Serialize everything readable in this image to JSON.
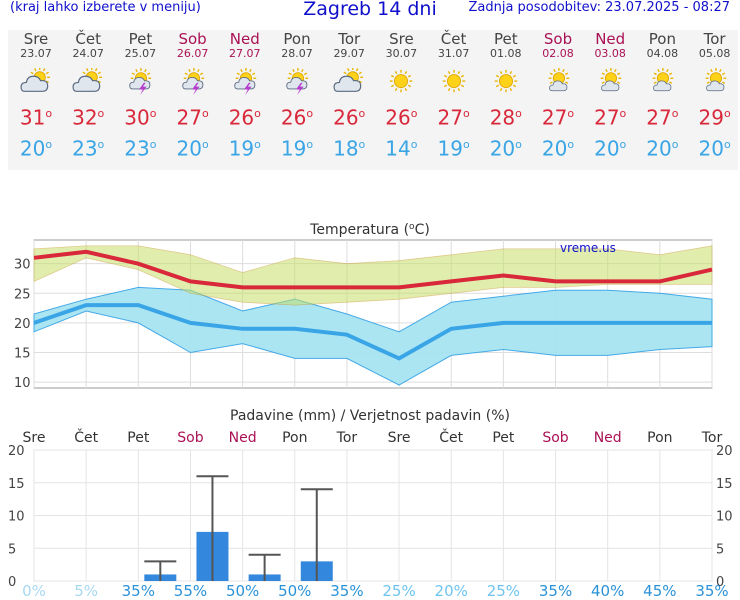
{
  "header": {
    "menu_hint": "(kraj lahko izberete v meniju)",
    "title": "Zagreb 14 dni",
    "updated": "Zadnja posodobitev: 23.07.2025 - 08:27"
  },
  "days": [
    {
      "name": "Sre",
      "date": "23.07",
      "weekend": false,
      "icon": "partly-cloudy-icon",
      "max": "31",
      "min": "20"
    },
    {
      "name": "Čet",
      "date": "24.07",
      "weekend": false,
      "icon": "partly-cloudy-icon",
      "max": "32",
      "min": "23"
    },
    {
      "name": "Pet",
      "date": "25.07",
      "weekend": false,
      "icon": "thunderstorm-icon",
      "max": "30",
      "min": "23"
    },
    {
      "name": "Sob",
      "date": "26.07",
      "weekend": true,
      "icon": "thunderstorm-icon",
      "max": "27",
      "min": "20"
    },
    {
      "name": "Ned",
      "date": "27.07",
      "weekend": true,
      "icon": "thunderstorm-icon",
      "max": "26",
      "min": "19"
    },
    {
      "name": "Pon",
      "date": "28.07",
      "weekend": false,
      "icon": "thunderstorm-icon",
      "max": "26",
      "min": "19"
    },
    {
      "name": "Tor",
      "date": "29.07",
      "weekend": false,
      "icon": "partly-cloudy-icon",
      "max": "26",
      "min": "18"
    },
    {
      "name": "Sre",
      "date": "30.07",
      "weekend": false,
      "icon": "sunny-icon",
      "max": "26",
      "min": "14"
    },
    {
      "name": "Čet",
      "date": "31.07",
      "weekend": false,
      "icon": "sunny-icon",
      "max": "27",
      "min": "19"
    },
    {
      "name": "Pet",
      "date": "01.08",
      "weekend": false,
      "icon": "sunny-icon",
      "max": "28",
      "min": "20"
    },
    {
      "name": "Sob",
      "date": "02.08",
      "weekend": true,
      "icon": "mostly-sunny-icon",
      "max": "27",
      "min": "20"
    },
    {
      "name": "Ned",
      "date": "03.08",
      "weekend": true,
      "icon": "mostly-sunny-icon",
      "max": "27",
      "min": "20"
    },
    {
      "name": "Pon",
      "date": "04.08",
      "weekend": false,
      "icon": "mostly-sunny-icon",
      "max": "27",
      "min": "20"
    },
    {
      "name": "Tor",
      "date": "05.08",
      "weekend": false,
      "icon": "mostly-sunny-icon",
      "max": "29",
      "min": "20"
    }
  ],
  "degree_symbol": "o",
  "colors": {
    "header": "#1010cc",
    "weekend": "#aa1155",
    "max": "#d8283a",
    "min": "#3aa5e6",
    "precip_bar": "#3388dd"
  },
  "chart_data": [
    {
      "type": "line",
      "title": "Temperatura (",
      "title_unit": "C)",
      "title_degree": "o",
      "watermark": "vreme.us",
      "x": [
        "Sre",
        "Čet",
        "Pet",
        "Sob",
        "Ned",
        "Pon",
        "Tor",
        "Sre",
        "Čet",
        "Pet",
        "Sob",
        "Ned",
        "Pon",
        "Tor"
      ],
      "ylim": [
        9,
        34
      ],
      "yticks": [
        10,
        15,
        20,
        25,
        30
      ],
      "series": [
        {
          "color": "#d8283a",
          "values": [
            31,
            32,
            30,
            27,
            26,
            26,
            26,
            26,
            27,
            28,
            27,
            27,
            27,
            29
          ]
        },
        {
          "color": "#3aa5e6",
          "values": [
            20,
            23,
            23,
            20,
            19,
            19,
            18,
            14,
            19,
            20,
            20,
            20,
            20,
            20
          ]
        }
      ],
      "max_band_upper": [
        32.5,
        33,
        33,
        31.5,
        28.5,
        31,
        30,
        30.5,
        31.5,
        32.5,
        32.5,
        32.5,
        31.5,
        33
      ],
      "max_band_lower": [
        27,
        31,
        29,
        25,
        23.5,
        23,
        23.5,
        24,
        25,
        26,
        26,
        26.5,
        26.5,
        26.5
      ],
      "min_band_upper": [
        21.5,
        24,
        26,
        25.5,
        22,
        24,
        21.5,
        18.5,
        23.5,
        24.5,
        25.5,
        25.5,
        25,
        24
      ],
      "min_band_lower": [
        18.5,
        22,
        20,
        15,
        16.5,
        14,
        14,
        9.5,
        14.5,
        15.5,
        14.5,
        14.5,
        15.5,
        16
      ]
    },
    {
      "type": "bar",
      "title": "Padavine (mm) / Verjetnost padavin (%)",
      "categories": [
        "Sre",
        "Čet",
        "Pet",
        "Sob",
        "Ned",
        "Pon",
        "Tor",
        "Sre",
        "Čet",
        "Pet",
        "Sob",
        "Ned",
        "Pon",
        "Tor"
      ],
      "values": [
        0,
        0,
        1,
        7.5,
        1,
        3,
        0,
        0,
        0,
        0,
        0,
        0,
        0,
        0
      ],
      "error_high": [
        0,
        0,
        3,
        16,
        4,
        14,
        0,
        0,
        0,
        0,
        0,
        0,
        0,
        0
      ],
      "ylim": [
        0,
        20
      ],
      "yticks": [
        0,
        5,
        10,
        15,
        20
      ],
      "probability": [
        "0%",
        "5%",
        "35%",
        "55%",
        "50%",
        "50%",
        "35%",
        "25%",
        "20%",
        "25%",
        "35%",
        "40%",
        "45%",
        "35%"
      ]
    }
  ]
}
